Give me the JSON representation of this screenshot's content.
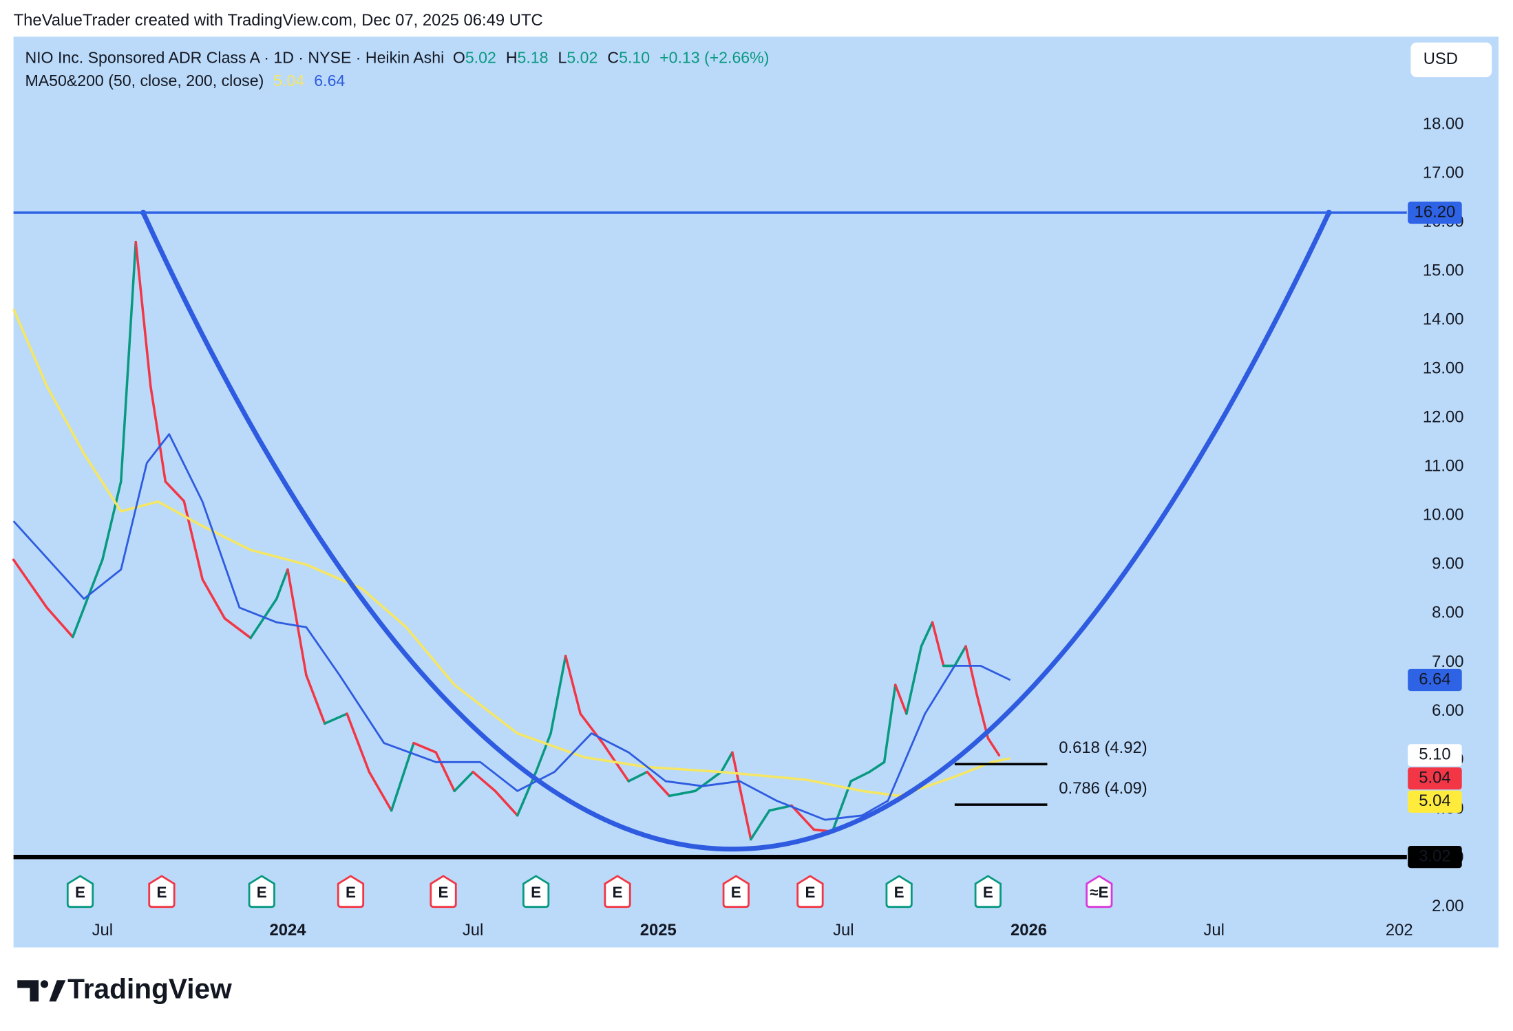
{
  "header": {
    "attribution": "TheValueTrader created with TradingView.com, Dec 07, 2025 06:49 UTC"
  },
  "footer": {
    "logo": "TradingView"
  },
  "chart_data": {
    "type": "line",
    "legend": {
      "symbol": "NIO Inc. Sponsored ADR Class A · 1D · NYSE · Heikin Ashi",
      "ohlc": [
        {
          "key": "O",
          "value": "5.02"
        },
        {
          "key": "H",
          "value": "5.18"
        },
        {
          "key": "L",
          "value": "5.02"
        },
        {
          "key": "C",
          "value": "5.10"
        }
      ],
      "change": "+0.13 (+2.66%)",
      "value_color": "#089981",
      "indicator": "MA50&200 (50, close, 200, close)",
      "indicator_values": [
        {
          "value": "5.04",
          "color": "#f5e663"
        },
        {
          "value": "6.64",
          "color": "#2e5be0"
        }
      ]
    },
    "currency": "USD",
    "xlim": [
      2023.26,
      2027.01
    ],
    "xticks": [
      {
        "value": 2023.5,
        "label": "Jul"
      },
      2024,
      {
        "value": 2024.5,
        "label": "Jul"
      },
      2025,
      {
        "value": 2025.5,
        "label": "Jul"
      },
      2026,
      {
        "value": 2026.5,
        "label": "Jul"
      },
      {
        "value": 2027,
        "label": "202"
      }
    ],
    "ylim": [
      1.9,
      19.8
    ],
    "yticks": [
      {
        "value": 2,
        "label": "2.00"
      },
      {
        "value": 3,
        "label": "3.00"
      },
      {
        "value": 4,
        "label": "4.00"
      },
      {
        "value": 5,
        "label": "5.00"
      },
      {
        "value": 6,
        "label": "6.00"
      },
      {
        "value": 7,
        "label": "7.00"
      },
      {
        "value": 8,
        "label": "8.00"
      },
      {
        "value": 9,
        "label": "9.00"
      },
      {
        "value": 10,
        "label": "10.00"
      },
      {
        "value": 11,
        "label": "11.00"
      },
      {
        "value": 12,
        "label": "12.00"
      },
      {
        "value": 13,
        "label": "13.00"
      },
      {
        "value": 14,
        "label": "14.00"
      },
      {
        "value": 15,
        "label": "15.00"
      },
      {
        "value": 16,
        "label": "16.00"
      },
      {
        "value": 17,
        "label": "17.00"
      },
      {
        "value": 18,
        "label": "18.00"
      }
    ],
    "price": {
      "up_color": "#089981",
      "down_color": "#f23645",
      "x": [
        2023.26,
        2023.35,
        2023.42,
        2023.5,
        2023.55,
        2023.59,
        2023.63,
        2023.67,
        2023.72,
        2023.77,
        2023.83,
        2023.9,
        2023.97,
        2024.0,
        2024.05,
        2024.1,
        2024.16,
        2024.22,
        2024.28,
        2024.34,
        2024.4,
        2024.45,
        2024.5,
        2024.56,
        2024.62,
        2024.67,
        2024.71,
        2024.75,
        2024.79,
        2024.85,
        2024.92,
        2024.97,
        2025.03,
        2025.1,
        2025.17,
        2025.2,
        2025.25,
        2025.3,
        2025.36,
        2025.42,
        2025.47,
        2025.52,
        2025.57,
        2025.61,
        2025.64,
        2025.67,
        2025.71,
        2025.74,
        2025.77,
        2025.8,
        2025.83,
        2025.86,
        2025.89,
        2025.92
      ],
      "values": [
        9.1,
        8.12,
        7.52,
        9.1,
        10.7,
        15.6,
        12.65,
        10.7,
        10.3,
        8.7,
        7.9,
        7.5,
        8.3,
        8.9,
        6.74,
        5.75,
        5.95,
        4.76,
        3.97,
        5.35,
        5.16,
        4.37,
        4.76,
        4.37,
        3.87,
        4.76,
        5.55,
        7.13,
        5.95,
        5.35,
        4.57,
        4.76,
        4.27,
        4.37,
        4.76,
        5.16,
        3.38,
        3.97,
        4.07,
        3.58,
        3.54,
        4.57,
        4.76,
        4.96,
        6.54,
        5.95,
        7.33,
        7.82,
        6.93,
        6.93,
        7.33,
        6.34,
        5.45,
        5.1
      ]
    },
    "ma50": {
      "color": "#2e5be0",
      "x": [
        2023.26,
        2023.45,
        2023.55,
        2023.62,
        2023.68,
        2023.77,
        2023.87,
        2023.97,
        2024.05,
        2024.14,
        2024.26,
        2024.4,
        2024.52,
        2024.62,
        2024.72,
        2024.82,
        2024.92,
        2025.02,
        2025.12,
        2025.22,
        2025.32,
        2025.45,
        2025.55,
        2025.62,
        2025.72,
        2025.8,
        2025.87,
        2025.95
      ],
      "values": [
        9.89,
        8.3,
        8.9,
        11.08,
        11.67,
        10.29,
        8.12,
        7.82,
        7.72,
        6.74,
        5.35,
        4.96,
        4.96,
        4.37,
        4.76,
        5.55,
        5.16,
        4.57,
        4.47,
        4.57,
        4.17,
        3.78,
        3.87,
        4.17,
        5.95,
        6.93,
        6.93,
        6.64
      ]
    },
    "ma200": {
      "color": "#f5e663",
      "x": [
        2023.26,
        2023.35,
        2023.45,
        2023.55,
        2023.65,
        2023.77,
        2023.9,
        2024.05,
        2024.2,
        2024.32,
        2024.45,
        2024.62,
        2024.8,
        2024.97,
        2025.17,
        2025.4,
        2025.55,
        2025.65,
        2025.8,
        2025.9,
        2025.95
      ],
      "values": [
        14.23,
        12.65,
        11.27,
        10.09,
        10.29,
        9.79,
        9.3,
        9.0,
        8.51,
        7.72,
        6.54,
        5.55,
        5.06,
        4.86,
        4.76,
        4.6,
        4.37,
        4.27,
        4.66,
        4.96,
        5.04
      ]
    },
    "cup": {
      "color": "#2e5be0",
      "x": [
        2023.61,
        2025.2,
        2026.81
      ],
      "y": [
        16.2,
        3.18,
        16.2
      ]
    },
    "fib": [
      {
        "label": "0.618 (4.92)",
        "value": 4.92,
        "x": [
          2025.8,
          2026.05
        ]
      },
      {
        "label": "0.786 (4.09)",
        "value": 4.09,
        "x": [
          2025.8,
          2026.05
        ]
      }
    ],
    "price_scale_labels": [
      {
        "value": 16.2,
        "label": "16.20",
        "color": "#2e63e6",
        "text_color": "#ffffff",
        "line_width": 2.5
      },
      {
        "value": 6.64,
        "label": "6.64",
        "color": "#2e63e6",
        "text_color": "#ffffff"
      },
      {
        "value": 5.1,
        "label": "5.10",
        "color": "#ffffff",
        "text_color": "#131722"
      },
      {
        "value": 5.04,
        "label": "5.04",
        "color": "#f23645",
        "text_color": "#ffffff"
      },
      {
        "value": 5.04,
        "label": "5.04",
        "color": "#ffeb3b",
        "text_color": "#131722"
      },
      {
        "value": 3.02,
        "label": "3.02",
        "color": "#000000",
        "text_color": "#ffffff",
        "line_width": 4.5
      }
    ],
    "events": [
      {
        "x": 2023.44,
        "label": "E",
        "color": "#089981"
      },
      {
        "x": 2023.66,
        "label": "E",
        "color": "#f23645"
      },
      {
        "x": 2023.93,
        "label": "E",
        "color": "#089981"
      },
      {
        "x": 2024.17,
        "label": "E",
        "color": "#f23645"
      },
      {
        "x": 2024.42,
        "label": "E",
        "color": "#f23645"
      },
      {
        "x": 2024.67,
        "label": "E",
        "color": "#089981"
      },
      {
        "x": 2024.89,
        "label": "E",
        "color": "#f23645"
      },
      {
        "x": 2025.21,
        "label": "E",
        "color": "#f23645"
      },
      {
        "x": 2025.41,
        "label": "E",
        "color": "#f23645"
      },
      {
        "x": 2025.65,
        "label": "E",
        "color": "#089981"
      },
      {
        "x": 2025.89,
        "label": "E",
        "color": "#089981"
      },
      {
        "x": 2026.19,
        "label": "≈E",
        "color": "#d63bd9"
      }
    ]
  }
}
